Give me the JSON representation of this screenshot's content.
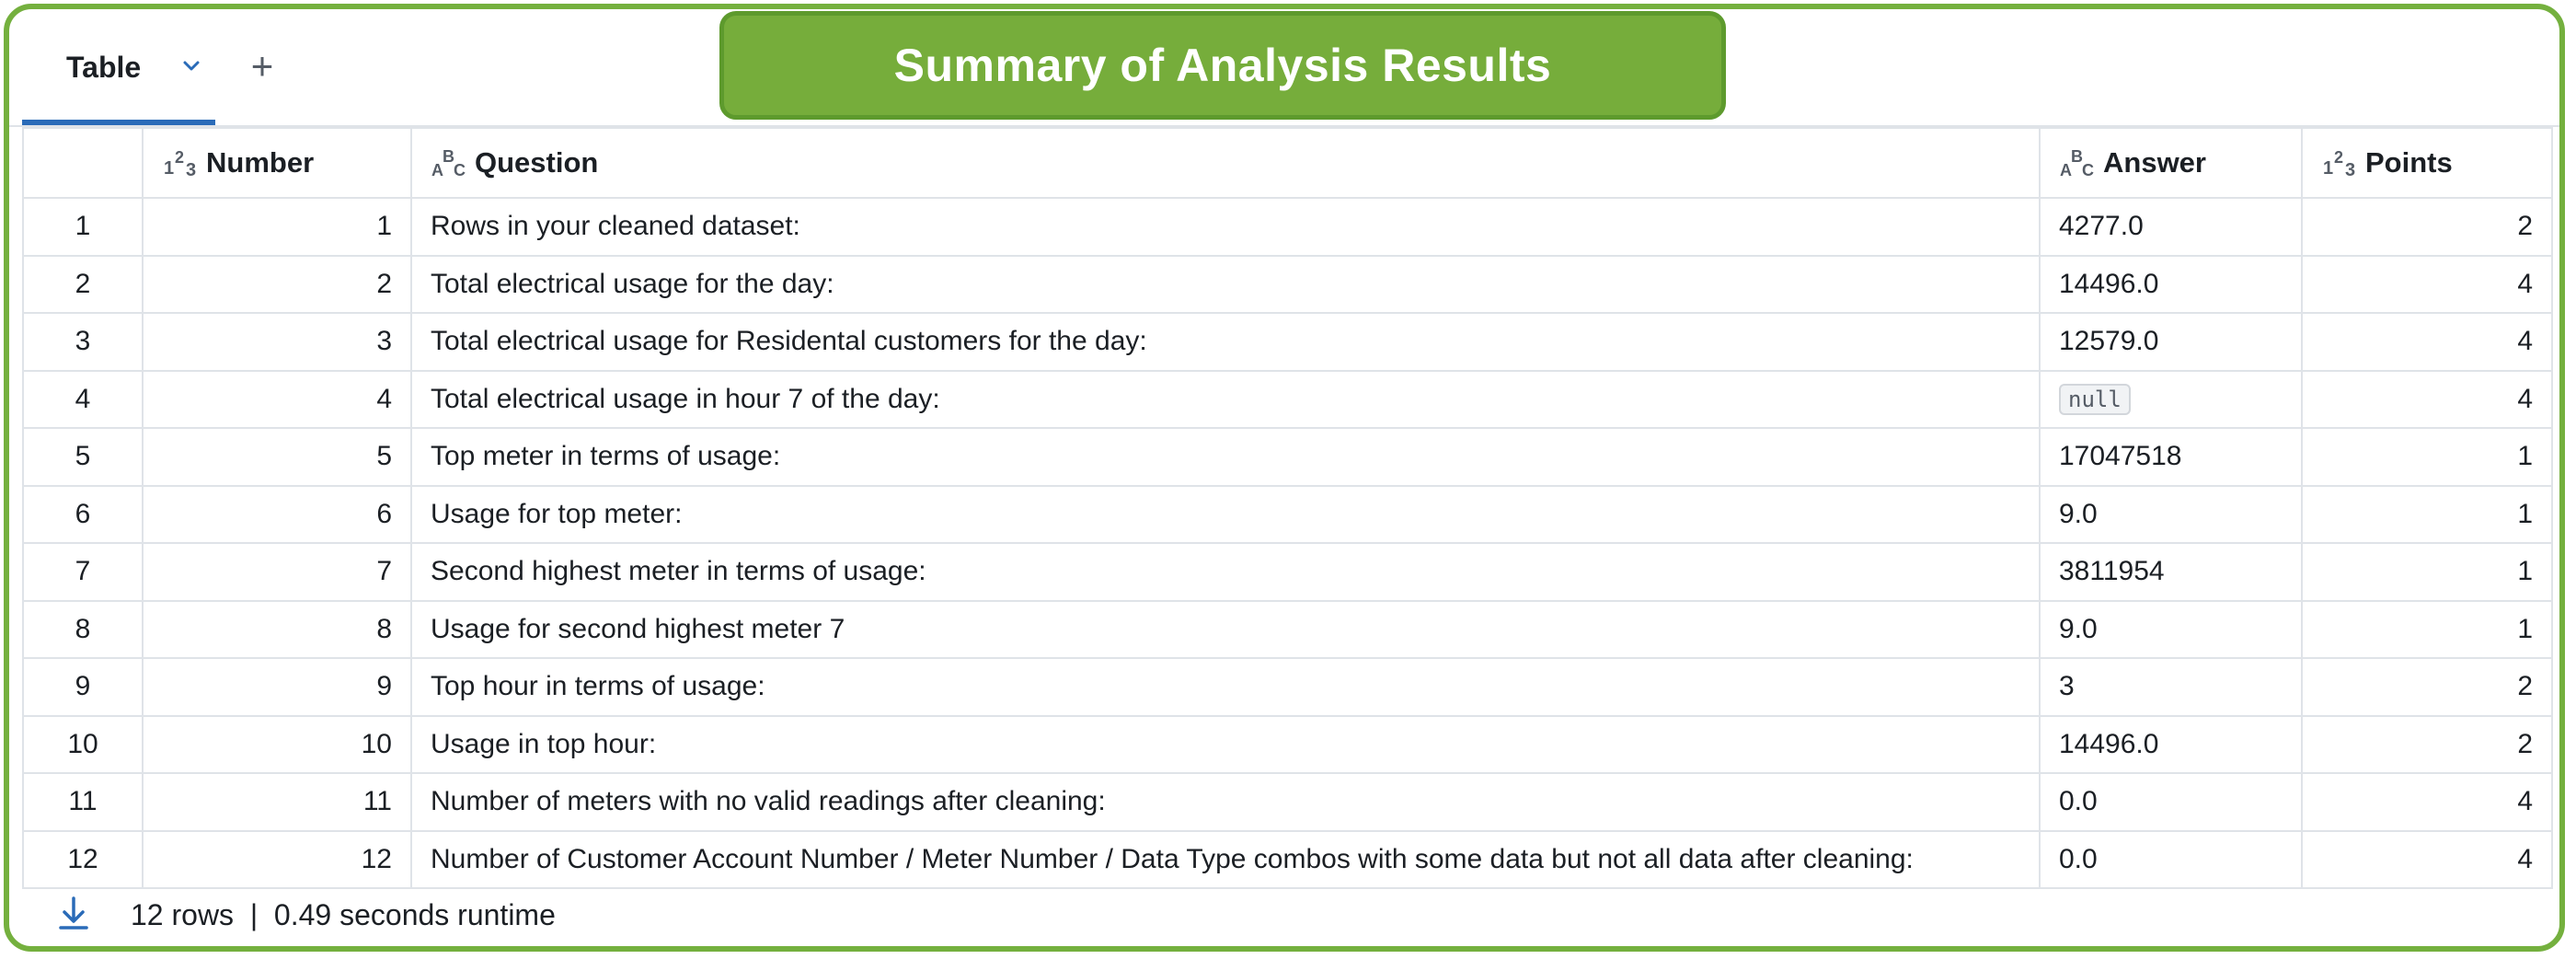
{
  "tabs": [
    {
      "label": "Table"
    }
  ],
  "banner": {
    "title": "Summary of Analysis Results"
  },
  "icons": {
    "chevron": "chevron-down-icon",
    "add": "plus-icon",
    "download": "download-icon",
    "numeric_type": "numeric-type-icon",
    "string_type": "string-type-icon"
  },
  "colors": {
    "accent": "#2a6bb8",
    "banner": "#76ad3b",
    "frame": "#74b03e"
  },
  "table": {
    "columns": [
      {
        "label": "",
        "type": "index"
      },
      {
        "label": "Number",
        "type": "numeric"
      },
      {
        "label": "Question",
        "type": "string"
      },
      {
        "label": "Answer",
        "type": "string"
      },
      {
        "label": "Points",
        "type": "numeric"
      }
    ],
    "rows": [
      {
        "idx": "1",
        "number": "1",
        "question": "Rows  in your cleaned dataset:",
        "answer": "4277.0",
        "points": "2"
      },
      {
        "idx": "2",
        "number": "2",
        "question": "Total electrical usage for the day:",
        "answer": "14496.0",
        "points": "4"
      },
      {
        "idx": "3",
        "number": "3",
        "question": "Total electrical usage for Residental customers for the day:",
        "answer": "12579.0",
        "points": "4"
      },
      {
        "idx": "4",
        "number": "4",
        "question": "Total electrical usage in hour 7 of the day:",
        "answer": null,
        "answer_null_label": "null",
        "points": "4"
      },
      {
        "idx": "5",
        "number": "5",
        "question": "Top meter in terms of usage:",
        "answer": "17047518",
        "points": "1"
      },
      {
        "idx": "6",
        "number": "6",
        "question": "Usage for top meter:",
        "answer": "9.0",
        "points": "1"
      },
      {
        "idx": "7",
        "number": "7",
        "question": "Second highest meter in terms of usage:",
        "answer": "3811954",
        "points": "1"
      },
      {
        "idx": "8",
        "number": "8",
        "question": "Usage for second highest meter 7",
        "answer": "9.0",
        "points": "1"
      },
      {
        "idx": "9",
        "number": "9",
        "question": "Top hour in terms of usage:",
        "answer": "3",
        "points": "2"
      },
      {
        "idx": "10",
        "number": "10",
        "question": "Usage in top hour:",
        "answer": "14496.0",
        "points": "2"
      },
      {
        "idx": "11",
        "number": "11",
        "question": "Number of meters with no valid readings after cleaning:",
        "answer": "0.0",
        "points": "4"
      },
      {
        "idx": "12",
        "number": "12",
        "question": "Number of Customer Account Number / Meter Number / Data Type combos with some data but not all data after cleaning:",
        "answer": "0.0",
        "points": "4"
      }
    ]
  },
  "footer": {
    "row_count": "12 rows",
    "separator": "|",
    "runtime": "0.49 seconds runtime"
  }
}
